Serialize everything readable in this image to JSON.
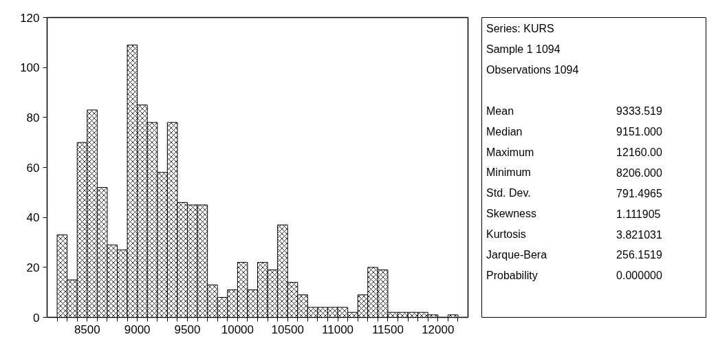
{
  "chart_data": [
    {
      "type": "histogram",
      "color": "#000000",
      "bins": [
        8200,
        8300,
        8400,
        8500,
        8600,
        8700,
        8800,
        8900,
        9000,
        9100,
        9200,
        9300,
        9400,
        9500,
        9600,
        9700,
        9800,
        9900,
        10000,
        10100,
        10200,
        10300,
        10400,
        10500,
        10600,
        10700,
        10800,
        10900,
        11000,
        11100,
        11200,
        11300,
        11400,
        11500,
        11600,
        11700,
        11800,
        11900,
        12000,
        12100,
        12200
      ],
      "values": [
        33,
        15,
        70,
        83,
        52,
        29,
        27,
        109,
        85,
        78,
        58,
        78,
        46,
        45,
        45,
        13,
        8,
        11,
        22,
        11,
        22,
        19,
        37,
        14,
        9,
        4,
        4,
        4,
        4,
        2,
        9,
        20,
        19,
        2,
        2,
        2,
        2,
        1,
        0,
        1
      ],
      "xlim": [
        8100,
        12300
      ],
      "ylim": [
        0,
        120
      ],
      "xticks": [
        {
          "value": 8200,
          "label": null
        },
        {
          "value": 8300,
          "label": null
        },
        {
          "value": 8400,
          "label": null
        },
        8500,
        {
          "value": 8600,
          "label": null
        },
        {
          "value": 8700,
          "label": null
        },
        {
          "value": 8800,
          "label": null
        },
        {
          "value": 8900,
          "label": null
        },
        9000,
        {
          "value": 9100,
          "label": null
        },
        {
          "value": 9200,
          "label": null
        },
        {
          "value": 9300,
          "label": null
        },
        {
          "value": 9400,
          "label": null
        },
        9500,
        {
          "value": 9600,
          "label": null
        },
        {
          "value": 9700,
          "label": null
        },
        {
          "value": 9800,
          "label": null
        },
        {
          "value": 9900,
          "label": null
        },
        10000,
        {
          "value": 10100,
          "label": null
        },
        {
          "value": 10200,
          "label": null
        },
        {
          "value": 10300,
          "label": null
        },
        {
          "value": 10400,
          "label": null
        },
        10500,
        {
          "value": 10600,
          "label": null
        },
        {
          "value": 10700,
          "label": null
        },
        {
          "value": 10800,
          "label": null
        },
        {
          "value": 10900,
          "label": null
        },
        11000,
        {
          "value": 11100,
          "label": null
        },
        {
          "value": 11200,
          "label": null
        },
        {
          "value": 11300,
          "label": null
        },
        {
          "value": 11400,
          "label": null
        },
        11500,
        {
          "value": 11600,
          "label": null
        },
        {
          "value": 11700,
          "label": null
        },
        {
          "value": 11800,
          "label": null
        },
        {
          "value": 11900,
          "label": null
        },
        12000,
        {
          "value": 12100,
          "label": null
        },
        {
          "value": 12200,
          "label": null
        }
      ],
      "yticks": [
        0,
        20,
        40,
        60,
        80,
        100,
        120
      ],
      "grid": false
    },
    {
      "type": "other",
      "annotations": [
        "Series: KURS",
        "Sample 1 1094",
        "Observations 1094",
        "Mean\t9333.519",
        "Median\t9151.000",
        "Maximum\t12160.00",
        "Minimum\t8206.000",
        "Std. Dev.\t791.4965",
        "Skewness\t1.111905",
        "Kurtosis\t3.821031",
        "Jarque-Bera\t256.1519",
        "Probability\t0.000000"
      ]
    }
  ]
}
